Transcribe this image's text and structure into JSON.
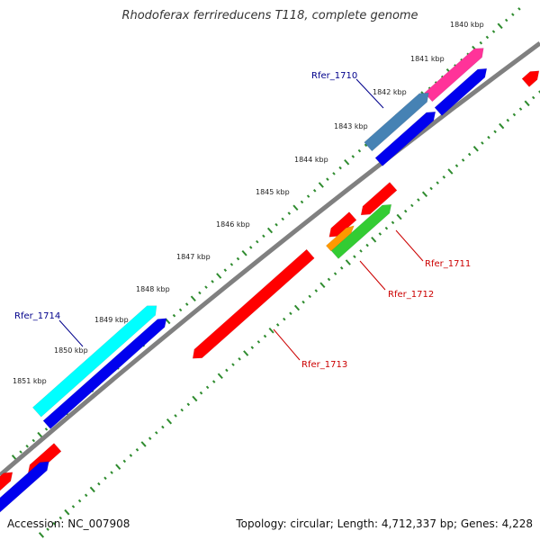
{
  "title": "Rhodoferax ferrireducens T118, complete genome",
  "accession": "Accession: NC_007908",
  "summary": "Topology: circular; Length: 4,712,337 bp; Genes: 4,228",
  "ticks": [
    "1840 kbp",
    "1841 kbp",
    "1842 kbp",
    "1843 kbp",
    "1844 kbp",
    "1845 kbp",
    "1846 kbp",
    "1847 kbp",
    "1848 kbp",
    "1849 kbp",
    "1850 kbp",
    "1851 kbp"
  ],
  "genes": [
    {
      "label": "Rfer_1710",
      "color": "#00008b"
    },
    {
      "label": "Rfer_1711",
      "color": "#cc0000"
    },
    {
      "label": "Rfer_1712",
      "color": "#cc0000"
    },
    {
      "label": "Rfer_1713",
      "color": "#cc0000"
    },
    {
      "label": "Rfer_1714",
      "color": "#00008b"
    }
  ],
  "colors": {
    "backbone": "#808080",
    "tick_marks": "#2e8b2e",
    "red": "#ff0000",
    "blue": "#0000ee",
    "cyan": "#00ffff",
    "magenta": "#ff3399",
    "steelblue": "#4682b4",
    "green": "#33cc33",
    "orange": "#ff9900"
  }
}
